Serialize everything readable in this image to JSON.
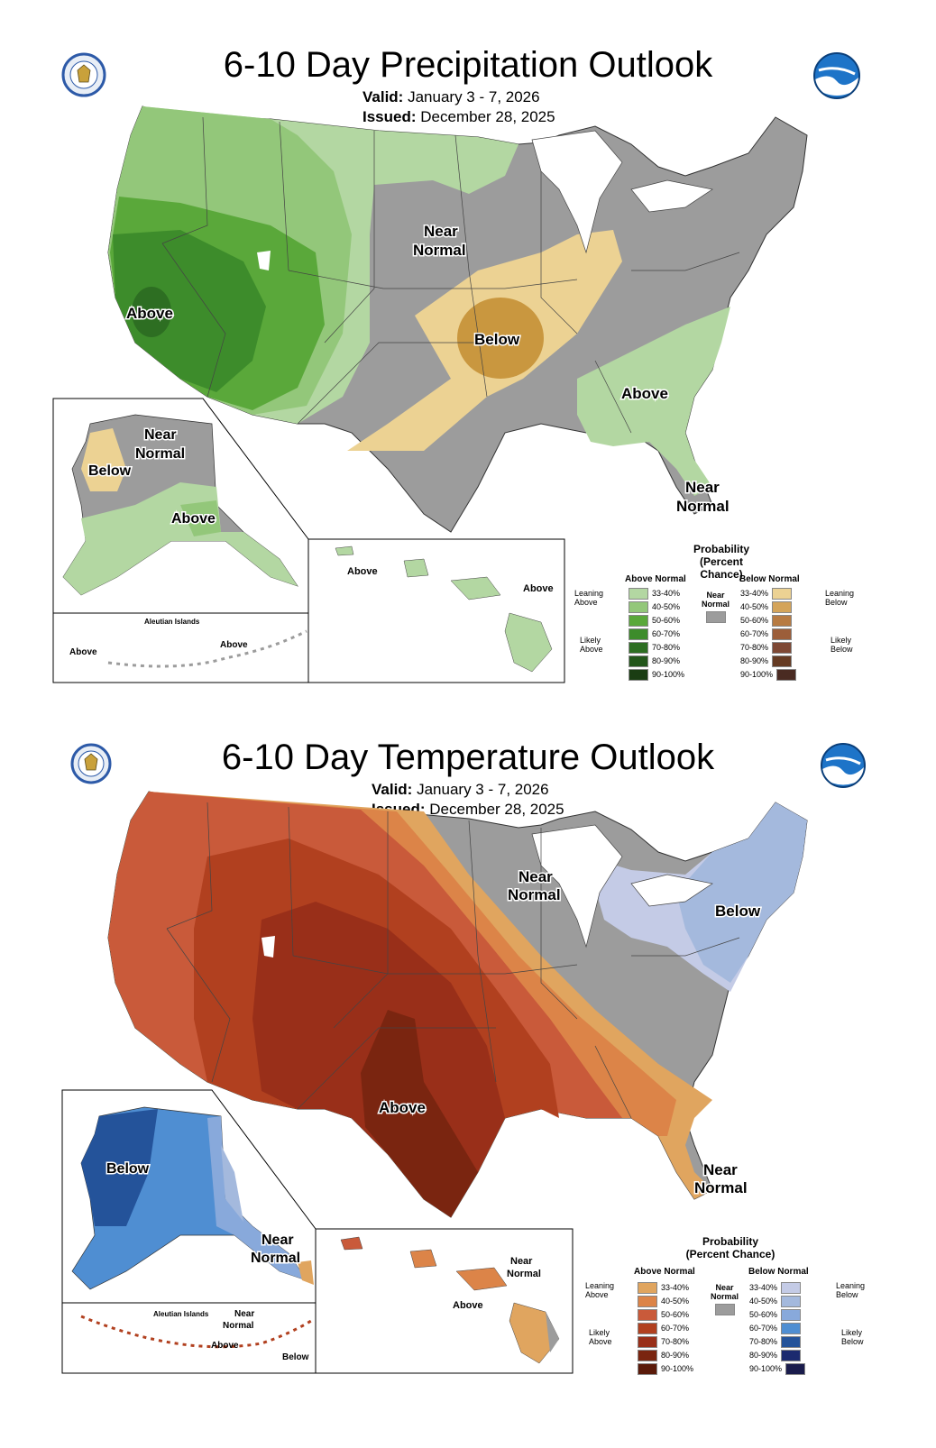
{
  "precip": {
    "title": "6-10 Day Precipitation Outlook",
    "valid_label": "Valid:",
    "valid_value": "January 3 - 7, 2026",
    "issued_label": "Issued:",
    "issued_value": "December 28, 2025",
    "labels": {
      "west_above": "Above",
      "central_below": "Below",
      "midwest_near": "Near",
      "midwest_normal": "Normal",
      "southeast_above": "Above",
      "florida_near": "Near",
      "florida_normal": "Normal",
      "ak_near": "Near",
      "ak_normal": "Normal",
      "ak_below": "Below",
      "ak_above": "Above",
      "hi_above_1": "Above",
      "hi_above_2": "Above",
      "aleutian_title": "Aleutian Islands",
      "aleutian_above_1": "Above",
      "aleutian_above_2": "Above"
    },
    "legend": {
      "title_1": "Probability",
      "title_2": "(Percent Chance)",
      "above_header": "Above Normal",
      "below_header": "Below Normal",
      "near_1": "Near",
      "near_2": "Normal",
      "leaning_above_1": "Leaning",
      "leaning_above_2": "Above",
      "likely_above_1": "Likely",
      "likely_above_2": "Above",
      "leaning_below_1": "Leaning",
      "leaning_below_2": "Below",
      "likely_below_1": "Likely",
      "likely_below_2": "Below",
      "ranges": [
        "33-40%",
        "40-50%",
        "50-60%",
        "60-70%",
        "70-80%",
        "80-90%",
        "90-100%"
      ],
      "above_colors": [
        "#b3d7a2",
        "#93c77a",
        "#5aa83a",
        "#3d8c2b",
        "#2d6e22",
        "#23561b",
        "#1a3d13"
      ],
      "below_colors": [
        "#ecd293",
        "#d4a45a",
        "#b77b43",
        "#9c5e3a",
        "#7e4834",
        "#653b23",
        "#4a2b22"
      ],
      "near_color": "#9c9c9c"
    }
  },
  "temp": {
    "title": "6-10 Day Temperature Outlook",
    "valid_label": "Valid:",
    "valid_value": "January 3 - 7, 2026",
    "issued_label": "Issued:",
    "issued_value": "December 28, 2025",
    "labels": {
      "south_above": "Above",
      "glakes_near": "Near",
      "glakes_normal": "Normal",
      "ne_below": "Below",
      "florida_near": "Near",
      "florida_normal": "Normal",
      "ak_below": "Below",
      "ak_near": "Near",
      "ak_normal": "Normal",
      "hi_near": "Near",
      "hi_normal": "Normal",
      "hi_above": "Above",
      "aleutian_title": "Aleutian Islands",
      "aleutian_near": "Near",
      "aleutian_normal": "Normal",
      "aleutian_above": "Above",
      "aleutian_below": "Below"
    },
    "legend": {
      "title_1": "Probability",
      "title_2": "(Percent Chance)",
      "above_header": "Above Normal",
      "below_header": "Below Normal",
      "near_1": "Near",
      "near_2": "Normal",
      "leaning_above_1": "Leaning",
      "leaning_above_2": "Above",
      "likely_above_1": "Likely",
      "likely_above_2": "Above",
      "leaning_below_1": "Leaning",
      "leaning_below_2": "Below",
      "likely_below_1": "Likely",
      "likely_below_2": "Below",
      "ranges": [
        "33-40%",
        "40-50%",
        "50-60%",
        "60-70%",
        "70-80%",
        "80-90%",
        "90-100%"
      ],
      "above_colors": [
        "#e0a55f",
        "#dc8448",
        "#c95a3a",
        "#b1401f",
        "#992f19",
        "#7a2510",
        "#5a1a0a"
      ],
      "below_colors": [
        "#c4cbe6",
        "#a4b9dd",
        "#88a9db",
        "#4f8ed2",
        "#24539a",
        "#1c2a6f",
        "#1a1c4c"
      ],
      "near_color": "#9c9c9c"
    }
  }
}
